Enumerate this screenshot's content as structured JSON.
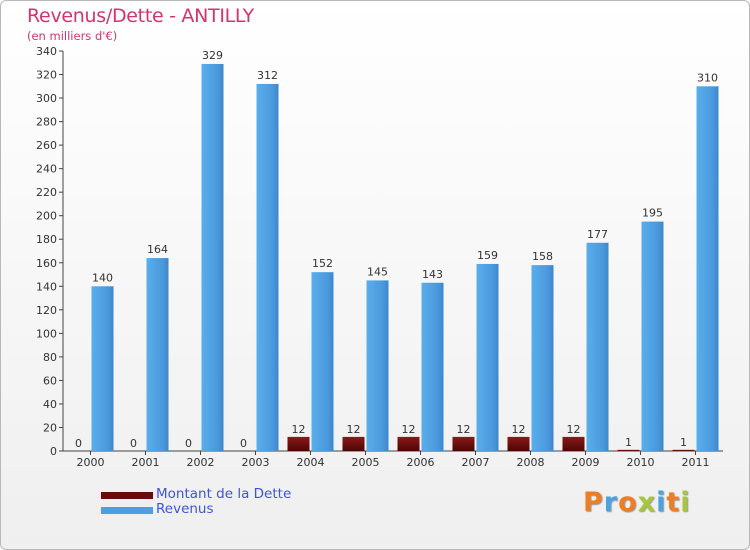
{
  "chart_data": {
    "type": "bar",
    "title": "Revenus/Dette - ANTILLY",
    "subtitle": "(en milliers d'€)",
    "categories": [
      "2000",
      "2001",
      "2002",
      "2003",
      "2004",
      "2005",
      "2006",
      "2007",
      "2008",
      "2009",
      "2010",
      "2011"
    ],
    "series": [
      {
        "name": "Montant de la Dette",
        "color": "#6b0a0a",
        "values": [
          0,
          0,
          0,
          0,
          12,
          12,
          12,
          12,
          12,
          12,
          1,
          1
        ]
      },
      {
        "name": "Revenus",
        "color": "#4f9fe0",
        "values": [
          140,
          164,
          329,
          312,
          152,
          145,
          143,
          159,
          158,
          177,
          195,
          310
        ]
      }
    ],
    "ylim": [
      0,
      340
    ],
    "ytick_step": 20,
    "grid": false,
    "legend": "bottom-left"
  },
  "legend": {
    "debt_label": "Montant de la Dette",
    "revenue_label": "Revenus"
  },
  "brand": {
    "letters": [
      "P",
      "r",
      "o",
      "x",
      "i",
      "t",
      "i"
    ],
    "colors": [
      "#ef7d22",
      "#4aa3df",
      "#ef7d22",
      "#a8c63b",
      "#4aa3df",
      "#ef7d22",
      "#a8c63b"
    ]
  }
}
